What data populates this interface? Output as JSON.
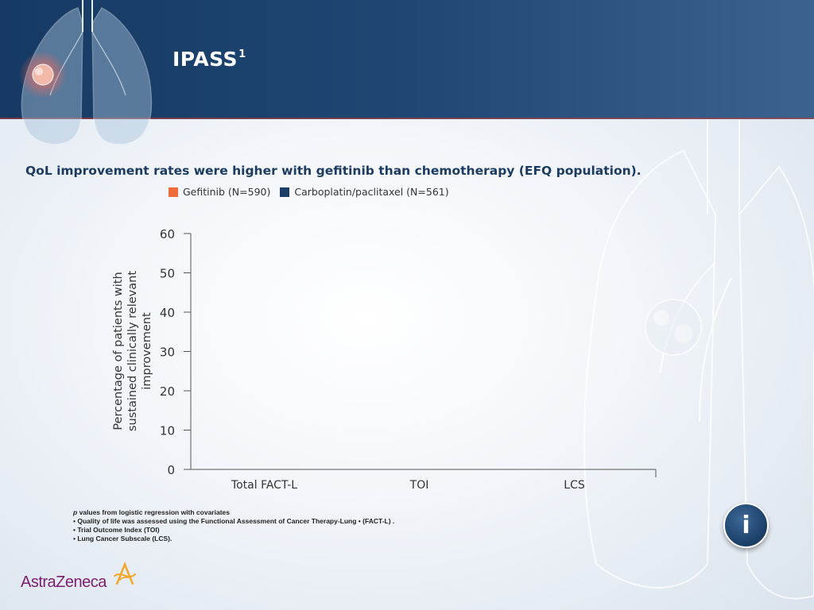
{
  "header": {
    "title": "IPASS",
    "title_superscript": "1"
  },
  "subtitle": "QoL improvement rates were higher with gefitinib than chemotherapy (EFQ population).",
  "legend": [
    {
      "label": "Gefitinib (N=590)",
      "color": "#ef6b3a"
    },
    {
      "label": "Carboplatin/paclitaxel (N=561)",
      "color": "#1b3e66"
    }
  ],
  "chart_data": {
    "type": "bar",
    "categories": [
      "Total FACT-L",
      "TOI",
      "LCS"
    ],
    "series": [
      {
        "name": "Gefitinib (N=590)",
        "values": [
          null,
          null,
          null
        ],
        "color": "#ef6b3a"
      },
      {
        "name": "Carboplatin/paclitaxel (N=561)",
        "values": [
          null,
          null,
          null
        ],
        "color": "#1b3e66"
      }
    ],
    "ylabel": "Percentage of patients with sustained clinically relevant improvement",
    "ylabel_lines": [
      "Percentage of patients with",
      "sustained clinically relevant",
      "improvement"
    ],
    "ylim": [
      0,
      60
    ],
    "yticks": [
      0,
      10,
      20,
      30,
      40,
      50,
      60
    ],
    "grid": false
  },
  "footnotes": {
    "lead": "p",
    "lead_rest": " values from logistic regression with covariates",
    "items": [
      "• Quality of life was assessed using the Functional Assessment of Cancer Therapy-Lung • (FACT-L) .",
      "• Trial Outcome Index (TOI)",
      "• Lung Cancer Subscale (LCS)."
    ]
  },
  "info_button": {
    "label": "i",
    "icon": "info-icon"
  },
  "logo": {
    "text": "AstraZeneca",
    "icon": "astrazeneca-symbol-icon"
  }
}
